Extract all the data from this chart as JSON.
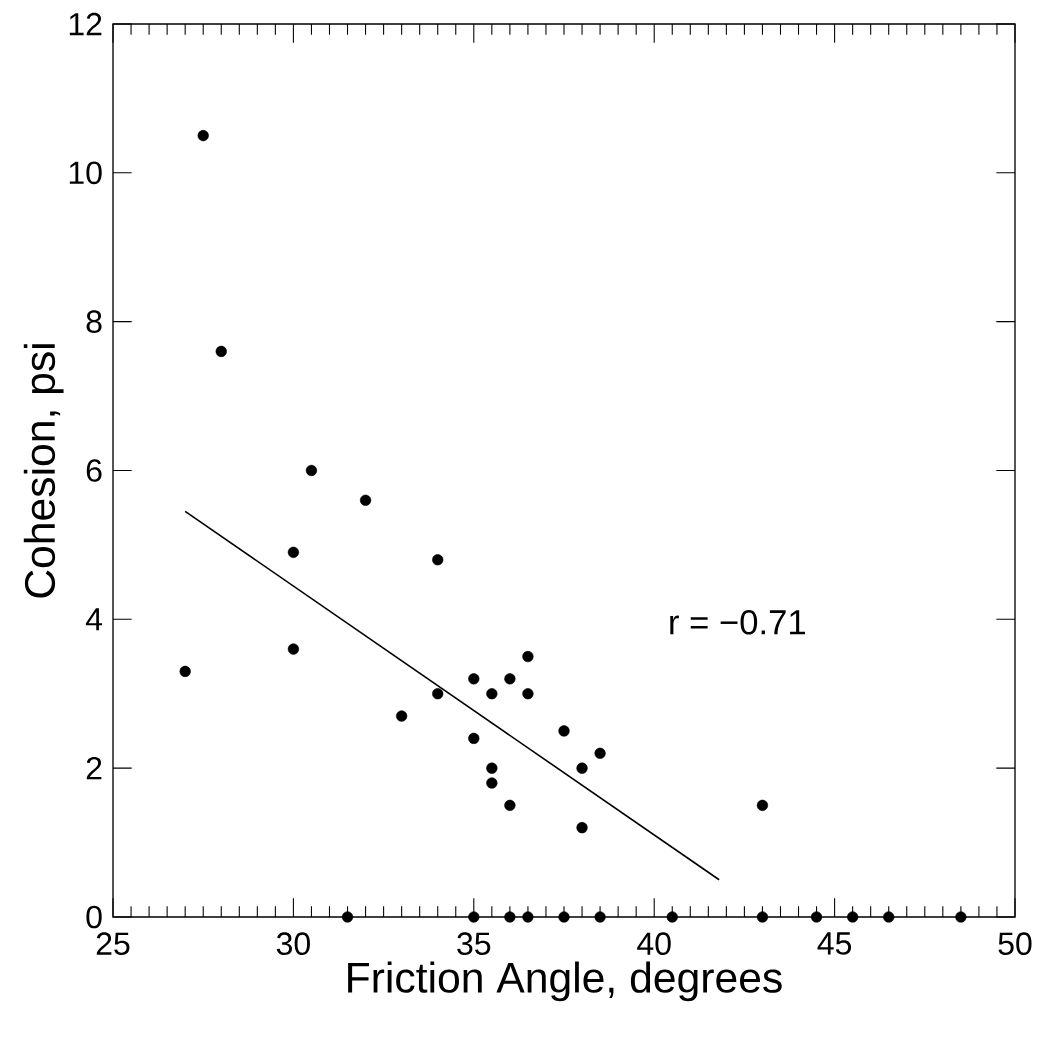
{
  "chart_data": {
    "type": "scatter",
    "xlabel": "Friction Angle, degrees",
    "ylabel": "Cohesion, psi",
    "xlim": [
      25,
      50
    ],
    "ylim": [
      0,
      12
    ],
    "xticks": [
      25,
      30,
      35,
      40,
      45,
      50
    ],
    "yticks": [
      0,
      2,
      4,
      6,
      8,
      10,
      12
    ],
    "annotations": [
      "r = −0.71"
    ],
    "series": [
      {
        "color": "#000000",
        "marker": "circle",
        "x": [
          27,
          27.5,
          28,
          30,
          30,
          30.5,
          32,
          33,
          34,
          34,
          35,
          35,
          35.5,
          35.5,
          35.5,
          36,
          36,
          36.5,
          36.5,
          37.5,
          38,
          38,
          38.5,
          43,
          31.5,
          35,
          36,
          36.5,
          37.5,
          38.5,
          40.5,
          43,
          44.5,
          45.5,
          46.5,
          48.5
        ],
        "values": [
          3.3,
          10.5,
          7.6,
          4.9,
          3.6,
          6.0,
          5.6,
          2.7,
          4.8,
          3.0,
          3.2,
          2.4,
          3.0,
          2.0,
          1.8,
          3.2,
          1.5,
          3.5,
          3.0,
          2.5,
          2.0,
          1.2,
          2.2,
          1.5,
          0,
          0,
          0,
          0,
          0,
          0,
          0,
          0,
          0,
          0,
          0,
          0
        ]
      },
      {
        "type": "line",
        "color": "#000000",
        "marker": "none",
        "line_style": "solid",
        "x": [
          27,
          41.8
        ],
        "values": [
          5.45,
          0.5
        ]
      }
    ]
  }
}
